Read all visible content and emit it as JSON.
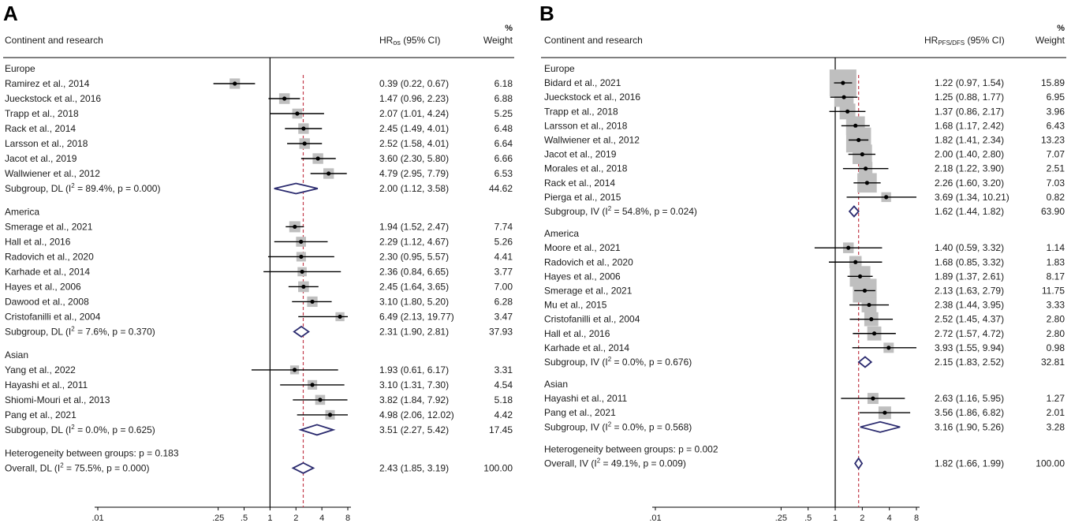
{
  "chart_data": [
    {
      "type": "forest",
      "panel_label": "A",
      "column_headers": {
        "study": "Continent and research",
        "effect": "HRos (95% CI)",
        "weight_top": "%",
        "weight": "Weight"
      },
      "x_scale": "log",
      "x_ticks": [
        ".01",
        ".25",
        ".5",
        "1",
        "2",
        "4",
        "8"
      ],
      "x_tick_values": [
        0.01,
        0.25,
        0.5,
        1,
        2,
        4,
        8
      ],
      "overall_reference_line": 2.43,
      "rows": [
        {
          "kind": "group",
          "label": "Europe"
        },
        {
          "kind": "study",
          "label": "Ramirez et al., 2014",
          "hr": 0.39,
          "lo": 0.22,
          "hi": 0.67,
          "ci": "0.39 (0.22, 0.67)",
          "weight": "6.18"
        },
        {
          "kind": "study",
          "label": "Jueckstock et al., 2016",
          "hr": 1.47,
          "lo": 0.96,
          "hi": 2.23,
          "ci": "1.47 (0.96, 2.23)",
          "weight": "6.88"
        },
        {
          "kind": "study",
          "label": "Trapp et al., 2018",
          "hr": 2.07,
          "lo": 1.01,
          "hi": 4.24,
          "ci": "2.07 (1.01, 4.24)",
          "weight": "5.25"
        },
        {
          "kind": "study",
          "label": "Rack et al., 2014",
          "hr": 2.45,
          "lo": 1.49,
          "hi": 4.01,
          "ci": "2.45 (1.49, 4.01)",
          "weight": "6.48"
        },
        {
          "kind": "study",
          "label": "Larsson et al., 2018",
          "hr": 2.52,
          "lo": 1.58,
          "hi": 4.01,
          "ci": "2.52 (1.58, 4.01)",
          "weight": "6.64"
        },
        {
          "kind": "study",
          "label": "Jacot et al., 2019",
          "hr": 3.6,
          "lo": 2.3,
          "hi": 5.8,
          "ci": "3.60 (2.30, 5.80)",
          "weight": "6.66"
        },
        {
          "kind": "study",
          "label": "Wallwiener et al., 2012",
          "hr": 4.79,
          "lo": 2.95,
          "hi": 7.79,
          "ci": "4.79 (2.95, 7.79)",
          "weight": "6.53"
        },
        {
          "kind": "subgroup",
          "label": "Subgroup, DL (I² = 89.4%, p = 0.000)",
          "hr": 2.0,
          "lo": 1.12,
          "hi": 3.58,
          "ci": "2.00 (1.12, 3.58)",
          "weight": "44.62"
        },
        {
          "kind": "gap"
        },
        {
          "kind": "group",
          "label": "America"
        },
        {
          "kind": "study",
          "label": "Smerage et al., 2021",
          "hr": 1.94,
          "lo": 1.52,
          "hi": 2.47,
          "ci": "1.94 (1.52, 2.47)",
          "weight": "7.74"
        },
        {
          "kind": "study",
          "label": "Hall et al., 2016",
          "hr": 2.29,
          "lo": 1.12,
          "hi": 4.67,
          "ci": "2.29 (1.12, 4.67)",
          "weight": "5.26"
        },
        {
          "kind": "study",
          "label": "Radovich et al., 2020",
          "hr": 2.3,
          "lo": 0.95,
          "hi": 5.57,
          "ci": "2.30 (0.95, 5.57)",
          "weight": "4.41"
        },
        {
          "kind": "study",
          "label": "Karhade et al., 2014",
          "hr": 2.36,
          "lo": 0.84,
          "hi": 6.65,
          "ci": "2.36 (0.84, 6.65)",
          "weight": "3.77"
        },
        {
          "kind": "study",
          "label": "Hayes et al., 2006",
          "hr": 2.45,
          "lo": 1.64,
          "hi": 3.65,
          "ci": "2.45 (1.64, 3.65)",
          "weight": "7.00"
        },
        {
          "kind": "study",
          "label": "Dawood  et al., 2008",
          "hr": 3.1,
          "lo": 1.8,
          "hi": 5.2,
          "ci": "3.10 (1.80, 5.20)",
          "weight": "6.28"
        },
        {
          "kind": "study",
          "label": "Cristofanilli et al., 2004",
          "hr": 6.49,
          "lo": 2.13,
          "hi": 19.77,
          "ci": "6.49 (2.13, 19.77)",
          "weight": "3.47"
        },
        {
          "kind": "subgroup",
          "label": "Subgroup, DL (I² = 7.6%, p = 0.370)",
          "hr": 2.31,
          "lo": 1.9,
          "hi": 2.81,
          "ci": "2.31 (1.90, 2.81)",
          "weight": "37.93"
        },
        {
          "kind": "gap"
        },
        {
          "kind": "group",
          "label": "Asian"
        },
        {
          "kind": "study",
          "label": "Yang et al., 2022",
          "hr": 1.93,
          "lo": 0.61,
          "hi": 6.17,
          "ci": "1.93 (0.61, 6.17)",
          "weight": "3.31"
        },
        {
          "kind": "study",
          "label": "Hayashi et al., 2011",
          "hr": 3.1,
          "lo": 1.31,
          "hi": 7.3,
          "ci": "3.10 (1.31, 7.30)",
          "weight": "4.54"
        },
        {
          "kind": "study",
          "label": "Shiomi-Mouri et al., 2013",
          "hr": 3.82,
          "lo": 1.84,
          "hi": 7.92,
          "ci": "3.82 (1.84, 7.92)",
          "weight": "5.18"
        },
        {
          "kind": "study",
          "label": "Pang et al., 2021",
          "hr": 4.98,
          "lo": 2.06,
          "hi": 12.02,
          "ci": "4.98 (2.06, 12.02)",
          "weight": "4.42"
        },
        {
          "kind": "subgroup",
          "label": "Subgroup, DL (I² = 0.0%, p = 0.625)",
          "hr": 3.51,
          "lo": 2.27,
          "hi": 5.42,
          "ci": "3.51 (2.27, 5.42)",
          "weight": "17.45"
        },
        {
          "kind": "gap"
        },
        {
          "kind": "note",
          "label": "Heterogeneity between groups: p = 0.183"
        },
        {
          "kind": "overall",
          "label": "Overall, DL (I² = 75.5%, p = 0.000)",
          "hr": 2.43,
          "lo": 1.85,
          "hi": 3.19,
          "ci": "2.43 (1.85, 3.19)",
          "weight": "100.00"
        }
      ]
    },
    {
      "type": "forest",
      "panel_label": "B",
      "column_headers": {
        "study": "Continent and research",
        "effect": "HRPFS/DFS (95% CI)",
        "weight_top": "%",
        "weight": "Weight"
      },
      "x_scale": "log",
      "x_ticks": [
        ".01",
        ".25",
        ".5",
        "1",
        "2",
        "4",
        "8"
      ],
      "x_tick_values": [
        0.01,
        0.25,
        0.5,
        1,
        2,
        4,
        8
      ],
      "overall_reference_line": 1.82,
      "rows": [
        {
          "kind": "group",
          "label": "Europe"
        },
        {
          "kind": "study",
          "label": "Bidard et al., 2021",
          "hr": 1.22,
          "lo": 0.97,
          "hi": 1.54,
          "ci": "1.22 (0.97, 1.54)",
          "weight": "15.89"
        },
        {
          "kind": "study",
          "label": "Jueckstock et al., 2016",
          "hr": 1.25,
          "lo": 0.88,
          "hi": 1.77,
          "ci": "1.25 (0.88, 1.77)",
          "weight": "6.95"
        },
        {
          "kind": "study",
          "label": "Trapp et al., 2018",
          "hr": 1.37,
          "lo": 0.86,
          "hi": 2.17,
          "ci": "1.37 (0.86, 2.17)",
          "weight": "3.96"
        },
        {
          "kind": "study",
          "label": "Larsson et al., 2018",
          "hr": 1.68,
          "lo": 1.17,
          "hi": 2.42,
          "ci": "1.68 (1.17, 2.42)",
          "weight": "6.43"
        },
        {
          "kind": "study",
          "label": "Wallwiener et al., 2012",
          "hr": 1.82,
          "lo": 1.41,
          "hi": 2.34,
          "ci": "1.82 (1.41, 2.34)",
          "weight": "13.23"
        },
        {
          "kind": "study",
          "label": "Jacot et al., 2019",
          "hr": 2.0,
          "lo": 1.4,
          "hi": 2.8,
          "ci": "2.00 (1.40, 2.80)",
          "weight": "7.07"
        },
        {
          "kind": "study",
          "label": "Morales et al., 2018",
          "hr": 2.18,
          "lo": 1.22,
          "hi": 3.9,
          "ci": "2.18 (1.22, 3.90)",
          "weight": "2.51"
        },
        {
          "kind": "study",
          "label": "Rack et al., 2014",
          "hr": 2.26,
          "lo": 1.6,
          "hi": 3.2,
          "ci": "2.26 (1.60, 3.20)",
          "weight": "7.03"
        },
        {
          "kind": "study",
          "label": "Pierga et al., 2015",
          "hr": 3.69,
          "lo": 1.34,
          "hi": 10.21,
          "ci": "3.69 (1.34, 10.21)",
          "weight": "0.82"
        },
        {
          "kind": "subgroup",
          "label": "Subgroup, IV (I² = 54.8%, p = 0.024)",
          "hr": 1.62,
          "lo": 1.44,
          "hi": 1.82,
          "ci": "1.62 (1.44, 1.82)",
          "weight": "63.90"
        },
        {
          "kind": "gap"
        },
        {
          "kind": "group",
          "label": "America"
        },
        {
          "kind": "study",
          "label": "Moore et  al., 2021",
          "hr": 1.4,
          "lo": 0.59,
          "hi": 3.32,
          "ci": "1.40 (0.59, 3.32)",
          "weight": "1.14"
        },
        {
          "kind": "study",
          "label": "Radovich et al., 2020",
          "hr": 1.68,
          "lo": 0.85,
          "hi": 3.32,
          "ci": "1.68 (0.85, 3.32)",
          "weight": "1.83"
        },
        {
          "kind": "study",
          "label": "Hayes et al., 2006",
          "hr": 1.89,
          "lo": 1.37,
          "hi": 2.61,
          "ci": "1.89 (1.37, 2.61)",
          "weight": "8.17"
        },
        {
          "kind": "study",
          "label": "Smerage et al., 2021",
          "hr": 2.13,
          "lo": 1.63,
          "hi": 2.79,
          "ci": "2.13 (1.63, 2.79)",
          "weight": "11.75"
        },
        {
          "kind": "study",
          "label": "Mu et al., 2015",
          "hr": 2.38,
          "lo": 1.44,
          "hi": 3.95,
          "ci": "2.38 (1.44, 3.95)",
          "weight": "3.33"
        },
        {
          "kind": "study",
          "label": "Cristofanilli et al., 2004",
          "hr": 2.52,
          "lo": 1.45,
          "hi": 4.37,
          "ci": "2.52 (1.45, 4.37)",
          "weight": "2.80"
        },
        {
          "kind": "study",
          "label": "Hall et al., 2016",
          "hr": 2.72,
          "lo": 1.57,
          "hi": 4.72,
          "ci": "2.72 (1.57, 4.72)",
          "weight": "2.80"
        },
        {
          "kind": "study",
          "label": "Karhade et al., 2014",
          "hr": 3.93,
          "lo": 1.55,
          "hi": 9.94,
          "ci": "3.93 (1.55, 9.94)",
          "weight": "0.98"
        },
        {
          "kind": "subgroup",
          "label": "Subgroup, IV (I² = 0.0%, p = 0.676)",
          "hr": 2.15,
          "lo": 1.83,
          "hi": 2.52,
          "ci": "2.15 (1.83, 2.52)",
          "weight": "32.81"
        },
        {
          "kind": "gap"
        },
        {
          "kind": "group",
          "label": "Asian"
        },
        {
          "kind": "study",
          "label": "Hayashi et al., 2011",
          "hr": 2.63,
          "lo": 1.16,
          "hi": 5.95,
          "ci": "2.63 (1.16, 5.95)",
          "weight": "1.27"
        },
        {
          "kind": "study",
          "label": "Pang et al., 2021",
          "hr": 3.56,
          "lo": 1.86,
          "hi": 6.82,
          "ci": "3.56 (1.86, 6.82)",
          "weight": "2.01"
        },
        {
          "kind": "subgroup",
          "label": "Subgroup, IV (I² = 0.0%, p = 0.568)",
          "hr": 3.16,
          "lo": 1.9,
          "hi": 5.26,
          "ci": "3.16 (1.90, 5.26)",
          "weight": "3.28"
        },
        {
          "kind": "gap"
        },
        {
          "kind": "note",
          "label": "Heterogeneity between groups: p = 0.002"
        },
        {
          "kind": "overall",
          "label": "Overall, IV (I² = 49.1%, p = 0.009)",
          "hr": 1.82,
          "lo": 1.66,
          "hi": 1.99,
          "ci": "1.82 (1.66, 1.99)",
          "weight": "100.00"
        }
      ]
    }
  ],
  "colors": {
    "diamond": "#2a2a6e",
    "reference": "#c23b4a",
    "box": "#bfbfbf",
    "line": "#000000"
  }
}
